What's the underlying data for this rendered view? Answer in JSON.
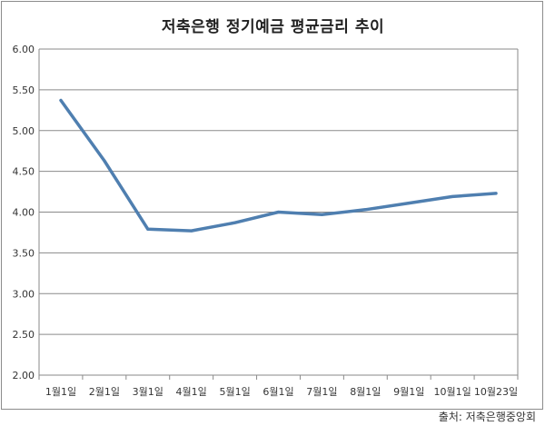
{
  "chart_data": {
    "type": "line",
    "title": "저축은행 정기예금 평균금리 추이",
    "xlabel": "",
    "ylabel": "",
    "categories": [
      "1월1일",
      "2월1일",
      "3월1일",
      "4월1일",
      "5월1일",
      "6월1일",
      "7월1일",
      "8월1일",
      "9월1일",
      "10월1일",
      "10월23일"
    ],
    "series": [
      {
        "values": [
          5.37,
          4.63,
          3.79,
          3.77,
          3.87,
          4.0,
          3.97,
          4.03,
          4.11,
          4.19,
          4.23
        ]
      }
    ],
    "ylim": [
      2.0,
      6.0
    ],
    "yticks": [
      "2.00",
      "2.50",
      "3.00",
      "3.50",
      "4.00",
      "4.50",
      "5.00",
      "5.50",
      "6.00"
    ],
    "grid": true,
    "line_color": "#4f7fb0"
  },
  "source": "출처: 저축은행중앙회"
}
